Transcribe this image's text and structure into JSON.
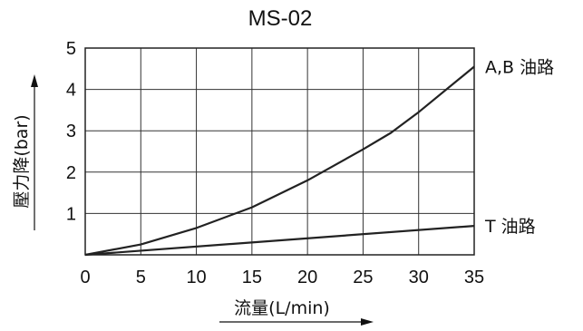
{
  "chart_data": {
    "type": "line",
    "title": "MS-02",
    "xlabel": "流量(L/min)",
    "ylabel": "壓力降(bar)",
    "xlim": [
      0,
      35
    ],
    "ylim": [
      0,
      5
    ],
    "x_ticks": [
      "0",
      "5",
      "10",
      "15",
      "20",
      "25",
      "30",
      "35"
    ],
    "y_ticks": [
      "1",
      "2",
      "3",
      "4",
      "5"
    ],
    "grid": true,
    "series": [
      {
        "name": "A,B 油路",
        "x": [
          0,
          5,
          10,
          15,
          20,
          25,
          27.5,
          30,
          35
        ],
        "y": [
          0,
          0.25,
          0.65,
          1.15,
          1.8,
          2.55,
          2.95,
          3.45,
          4.55
        ]
      },
      {
        "name": "T 油路",
        "x": [
          0,
          35
        ],
        "y": [
          0,
          0.7
        ]
      }
    ]
  }
}
